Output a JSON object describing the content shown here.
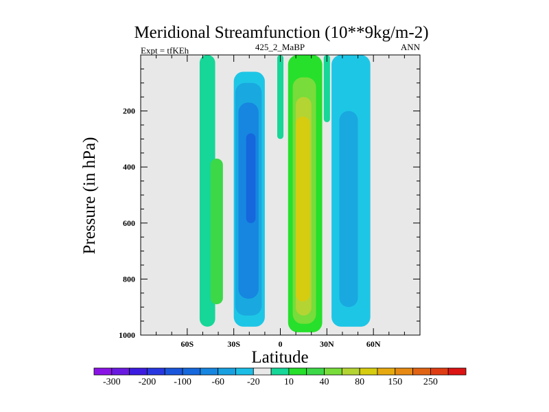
{
  "chart_data": {
    "type": "heatmap",
    "title": "Meridional Streamfunction (10**9kg/m-2)",
    "subtitle_left": "Expt = tfKEh",
    "subtitle_center": "425_2_MaBP",
    "subtitle_right": "ANN",
    "xlabel": "Latitude",
    "ylabel": "Pressure (in hPa)",
    "xlim": [
      -90,
      90
    ],
    "ylim": [
      1000,
      0
    ],
    "x_ticks": [
      {
        "value": -60,
        "label": "60S"
      },
      {
        "value": -30,
        "label": "30S"
      },
      {
        "value": 0,
        "label": "0"
      },
      {
        "value": 30,
        "label": "30N"
      },
      {
        "value": 60,
        "label": "60N"
      }
    ],
    "y_ticks": [
      {
        "value": 200,
        "label": "200"
      },
      {
        "value": 400,
        "label": "400"
      },
      {
        "value": 600,
        "label": "600"
      },
      {
        "value": 800,
        "label": "800"
      },
      {
        "value": 1000,
        "label": "1000"
      }
    ],
    "background_color": "#e8e8e8",
    "regions": [
      {
        "band": "10 to 20",
        "color": "#16d698",
        "lat": [
          -52,
          -42
        ],
        "p": [
          0,
          970
        ]
      },
      {
        "band": "10 to 20",
        "color": "#16d698",
        "lat": [
          28,
          32
        ],
        "p": [
          0,
          240
        ]
      },
      {
        "band": "10 to 20",
        "color": "#16d698",
        "lat": [
          -2,
          2
        ],
        "p": [
          0,
          300
        ]
      },
      {
        "band": "20 to 40",
        "color": "#3cd848",
        "lat": [
          -45,
          -37
        ],
        "p": [
          370,
          890
        ]
      },
      {
        "band": "-10 to 0",
        "color": "#1ec6e6",
        "lat": [
          -30,
          -10
        ],
        "p": [
          60,
          970
        ]
      },
      {
        "band": "-10 to 0",
        "color": "#1ec6e6",
        "lat": [
          33,
          58
        ],
        "p": [
          0,
          970
        ]
      },
      {
        "band": "-20 to -10",
        "color": "#1aa8e0",
        "lat": [
          -29,
          -12
        ],
        "p": [
          100,
          930
        ]
      },
      {
        "band": "-20 to -10",
        "color": "#1aa8e0",
        "lat": [
          38,
          50
        ],
        "p": [
          200,
          900
        ]
      },
      {
        "band": "-60 to -20",
        "color": "#1686e0",
        "lat": [
          -27,
          -14
        ],
        "p": [
          170,
          870
        ]
      },
      {
        "band": "-100 to -60",
        "color": "#1666dc",
        "lat": [
          -22,
          -16
        ],
        "p": [
          280,
          600
        ]
      },
      {
        "band": "20 to 40",
        "color": "#26e02c",
        "lat": [
          5,
          27
        ],
        "p": [
          0,
          990
        ]
      },
      {
        "band": "40 to 60",
        "color": "#78dc3a",
        "lat": [
          8,
          23
        ],
        "p": [
          80,
          960
        ]
      },
      {
        "band": "60 to 80",
        "color": "#b4d434",
        "lat": [
          10,
          20
        ],
        "p": [
          150,
          930
        ]
      },
      {
        "band": "80 to 100",
        "color": "#d6cc10",
        "lat": [
          10,
          19
        ],
        "p": [
          220,
          880
        ]
      }
    ],
    "colorbar": {
      "labels": [
        "-300",
        "-200",
        "-100",
        "-60",
        "-20",
        "10",
        "40",
        "80",
        "150",
        "250"
      ],
      "colors": [
        "#8a14e6",
        "#6a1ae0",
        "#3c1ce0",
        "#2838e0",
        "#1a56dc",
        "#1668dc",
        "#1686e0",
        "#18a0e0",
        "#1cbee6",
        "#e8e8e8",
        "#16d698",
        "#26e02c",
        "#3cd848",
        "#78dc3a",
        "#b4d434",
        "#d6cc10",
        "#e6aa10",
        "#e68a14",
        "#e06414",
        "#e03c14",
        "#dc1414"
      ]
    }
  }
}
